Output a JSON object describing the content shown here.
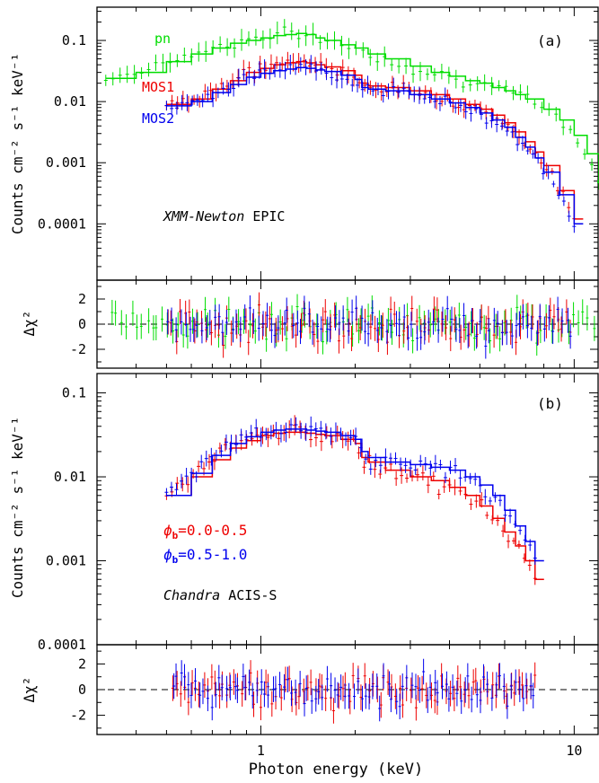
{
  "chart_data": [
    {
      "panel": "a",
      "type": "line",
      "panel_label": "(a)",
      "instrument": {
        "italic": "XMM-Newton",
        "rest": " EPIC"
      },
      "ylabel": "Counts cm⁻² s⁻¹ keV⁻¹",
      "xscale": "log",
      "yscale": "log",
      "xlim": [
        0.3,
        12
      ],
      "ylim": [
        1.2e-05,
        0.35
      ],
      "yticks": [
        "0.1",
        "0.01",
        "0.001",
        "0.0001"
      ],
      "series": [
        {
          "name": "pn",
          "color": "#00dd00",
          "x": [
            0.32,
            0.4,
            0.5,
            0.6,
            0.7,
            0.8,
            0.9,
            1.0,
            1.1,
            1.2,
            1.3,
            1.4,
            1.5,
            1.6,
            1.8,
            2.0,
            2.2,
            2.5,
            3.0,
            3.5,
            4.0,
            4.5,
            5.0,
            5.5,
            6.0,
            6.5,
            7.0,
            8.0,
            9.0,
            10.0,
            11.0,
            12.0
          ],
          "y": [
            0.024,
            0.03,
            0.045,
            0.06,
            0.075,
            0.09,
            0.1,
            0.11,
            0.12,
            0.125,
            0.13,
            0.125,
            0.11,
            0.1,
            0.085,
            0.075,
            0.06,
            0.05,
            0.038,
            0.03,
            0.026,
            0.022,
            0.02,
            0.017,
            0.015,
            0.013,
            0.011,
            0.0075,
            0.005,
            0.0028,
            0.0014,
            0.0005
          ]
        },
        {
          "name": "MOS1",
          "color": "#ee0000",
          "x": [
            0.5,
            0.6,
            0.7,
            0.8,
            0.9,
            1.0,
            1.1,
            1.2,
            1.3,
            1.4,
            1.5,
            1.6,
            1.8,
            2.0,
            2.1,
            2.2,
            2.5,
            3.0,
            3.5,
            4.0,
            4.5,
            5.0,
            5.5,
            6.0,
            6.5,
            7.0,
            7.5,
            8.0,
            9.0,
            10.0
          ],
          "y": [
            0.009,
            0.011,
            0.016,
            0.022,
            0.03,
            0.035,
            0.04,
            0.043,
            0.045,
            0.043,
            0.04,
            0.037,
            0.032,
            0.027,
            0.02,
            0.018,
            0.017,
            0.015,
            0.013,
            0.011,
            0.009,
            0.0075,
            0.006,
            0.0045,
            0.0032,
            0.0022,
            0.0015,
            0.0009,
            0.00035,
            0.00012
          ]
        },
        {
          "name": "MOS2",
          "color": "#0000ee",
          "x": [
            0.5,
            0.6,
            0.7,
            0.8,
            0.9,
            1.0,
            1.1,
            1.2,
            1.3,
            1.4,
            1.5,
            1.6,
            1.8,
            2.0,
            2.1,
            2.2,
            2.5,
            3.0,
            3.5,
            4.0,
            4.5,
            5.0,
            5.5,
            6.0,
            6.5,
            7.0,
            7.5,
            8.0,
            9.0,
            10.0
          ],
          "y": [
            0.0085,
            0.01,
            0.014,
            0.019,
            0.025,
            0.029,
            0.032,
            0.034,
            0.036,
            0.035,
            0.033,
            0.031,
            0.027,
            0.023,
            0.017,
            0.016,
            0.015,
            0.013,
            0.011,
            0.0095,
            0.008,
            0.0065,
            0.005,
            0.0038,
            0.0026,
            0.0018,
            0.0012,
            0.0007,
            0.0003,
            0.0001
          ]
        }
      ]
    },
    {
      "panel": "a-residuals",
      "type": "scatter",
      "ylabel": "Δχ²",
      "xscale": "log",
      "xlim": [
        0.3,
        12
      ],
      "ylim": [
        -3.5,
        3.5
      ],
      "yticks": [
        2,
        0,
        -2
      ],
      "series_colors": [
        "#00dd00",
        "#ee0000",
        "#0000ee"
      ]
    },
    {
      "panel": "b",
      "type": "line",
      "panel_label": "(b)",
      "instrument": {
        "italic": "Chandra",
        "rest": " ACIS-S"
      },
      "ylabel": "Counts cm⁻² s⁻¹ keV⁻¹",
      "xscale": "log",
      "yscale": "log",
      "xlim": [
        0.3,
        12
      ],
      "ylim": [
        0.0001,
        0.17
      ],
      "yticks": [
        "0.1",
        "0.01",
        "0.001",
        "0.0001"
      ],
      "series": [
        {
          "name": "φb=0.0-0.5",
          "label_symbol": "ϕ",
          "label_sub": "b",
          "label_rest": "=0.0-0.5",
          "color": "#ee0000",
          "x": [
            0.5,
            0.6,
            0.7,
            0.8,
            0.9,
            1.0,
            1.1,
            1.2,
            1.3,
            1.4,
            1.5,
            1.6,
            1.8,
            2.0,
            2.1,
            2.2,
            2.5,
            3.0,
            3.5,
            4.0,
            4.5,
            5.0,
            5.5,
            6.0,
            6.5,
            7.0,
            7.5
          ],
          "y": [
            0.006,
            0.01,
            0.016,
            0.022,
            0.027,
            0.031,
            0.033,
            0.034,
            0.034,
            0.033,
            0.032,
            0.031,
            0.028,
            0.025,
            0.017,
            0.015,
            0.012,
            0.01,
            0.009,
            0.0075,
            0.006,
            0.0045,
            0.0032,
            0.0022,
            0.0015,
            0.001,
            0.0006
          ]
        },
        {
          "name": "φb=0.5-1.0",
          "label_symbol": "ϕ",
          "label_sub": "b",
          "label_rest": "=0.5-1.0",
          "color": "#0000ee",
          "x": [
            0.5,
            0.6,
            0.7,
            0.8,
            0.9,
            1.0,
            1.1,
            1.2,
            1.3,
            1.4,
            1.5,
            1.6,
            1.8,
            2.0,
            2.1,
            2.2,
            2.5,
            3.0,
            3.5,
            4.0,
            4.5,
            5.0,
            5.5,
            6.0,
            6.5,
            7.0,
            7.5
          ],
          "y": [
            0.006,
            0.011,
            0.018,
            0.025,
            0.03,
            0.034,
            0.036,
            0.037,
            0.037,
            0.036,
            0.035,
            0.034,
            0.031,
            0.028,
            0.02,
            0.017,
            0.015,
            0.014,
            0.013,
            0.012,
            0.01,
            0.008,
            0.006,
            0.004,
            0.0026,
            0.0017,
            0.001
          ]
        }
      ]
    },
    {
      "panel": "b-residuals",
      "type": "scatter",
      "ylabel": "Δχ²",
      "xlabel": "Photon energy (keV)",
      "xscale": "log",
      "xlim": [
        0.3,
        12
      ],
      "ylim": [
        -3.5,
        3.5
      ],
      "yticks": [
        2,
        0,
        -2
      ],
      "xticks": [
        "1",
        "10"
      ],
      "series_colors": [
        "#ee0000",
        "#0000ee"
      ]
    }
  ]
}
